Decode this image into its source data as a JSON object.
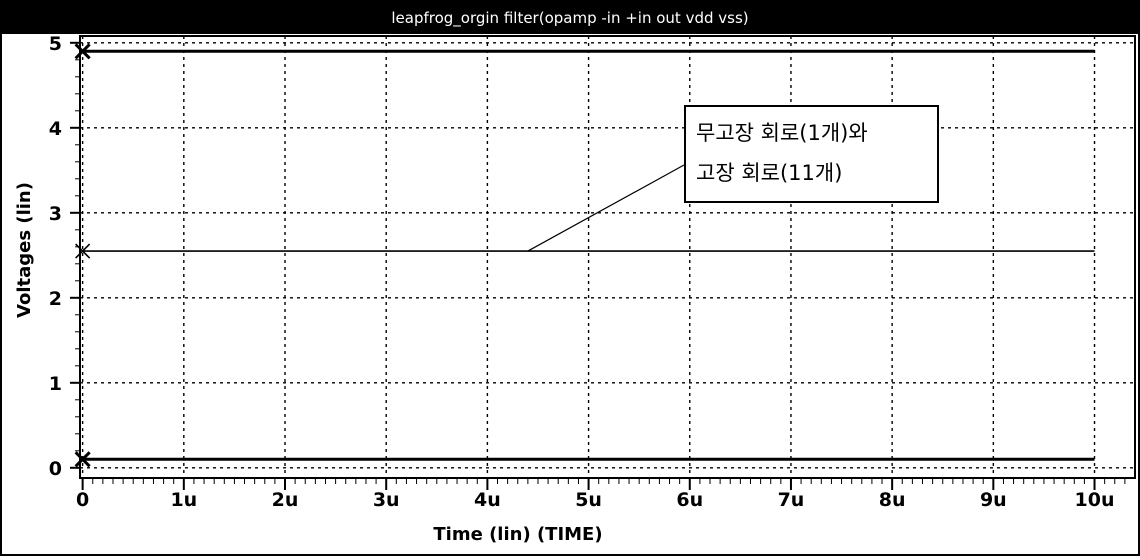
{
  "chart_data": {
    "type": "line",
    "title": "leapfrog_orgin filter(opamp -in +in out vdd vss)",
    "xlabel": "Time (lin) (TIME)",
    "ylabel": "Voltages (lin)",
    "xlim": [
      -2.6e-08,
      1.04e-05
    ],
    "ylim": [
      -0.12,
      5.08
    ],
    "x_ticks": [
      0,
      1e-06,
      2e-06,
      3e-06,
      4e-06,
      5e-06,
      6e-06,
      7e-06,
      8e-06,
      9e-06,
      1e-05
    ],
    "x_tick_labels": [
      "0",
      "1u",
      "2u",
      "3u",
      "4u",
      "5u",
      "6u",
      "7u",
      "8u",
      "9u",
      "10u"
    ],
    "y_ticks": [
      0,
      1,
      2,
      3,
      4,
      5
    ],
    "y_tick_labels": [
      "0",
      "1",
      "2",
      "3",
      "4",
      "5"
    ],
    "grid": true,
    "series": [
      {
        "x": [
          0,
          1e-05
        ],
        "y": [
          4.9,
          4.9
        ]
      },
      {
        "x": [
          0,
          1e-05
        ],
        "y": [
          2.55,
          2.55
        ]
      },
      {
        "x": [
          0,
          1e-05
        ],
        "y": [
          0.1,
          0.1
        ]
      }
    ],
    "annotation": {
      "lines": [
        "무고장 회로(1개)와",
        "고장 회로(11개)"
      ],
      "pointer_x": 4.4e-06,
      "pointer_y": 2.55
    }
  }
}
